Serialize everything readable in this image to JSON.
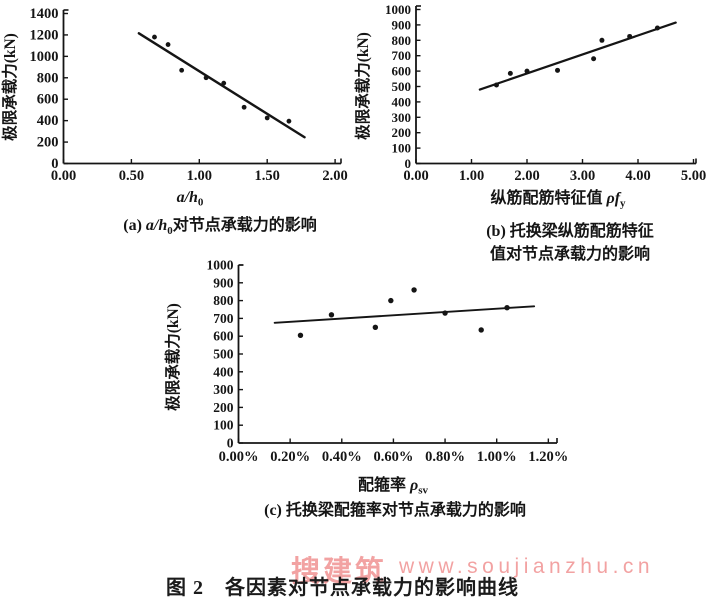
{
  "figure": {
    "title": "图 2　各因素对节点承载力的影响曲线"
  },
  "watermark": {
    "brand": "搜建筑",
    "url": "www.soujianzhu.cn",
    "color": "#f08c8c"
  },
  "ink_color": "#151515",
  "chart_data": [
    {
      "id": "a",
      "type": "scatter",
      "title": "(a) a/h0 对节点承载力的影响",
      "ylabel": "极限承载力(kN)",
      "xlabel_parts": [
        {
          "t": "a/h",
          "style": "italic"
        },
        {
          "t": "0",
          "style": "sub"
        }
      ],
      "caption_lines": [
        [
          {
            "t": "(a) "
          },
          {
            "t": "a/h",
            "style": "italic"
          },
          {
            "t": "0",
            "style": "sub"
          },
          {
            "t": "对节点承载力的影响"
          }
        ]
      ],
      "xlim": [
        0,
        2.0
      ],
      "ylim": [
        0,
        1400
      ],
      "xticks": [
        "0.00",
        "0.50",
        "1.00",
        "1.50",
        "2.00"
      ],
      "yticks": [
        "0",
        "200",
        "400",
        "600",
        "800",
        "1000",
        "1200",
        "1400"
      ],
      "grid": false,
      "legend": false,
      "points": [
        [
          0.67,
          1180
        ],
        [
          0.77,
          1110
        ],
        [
          0.87,
          870
        ],
        [
          1.05,
          800
        ],
        [
          1.18,
          750
        ],
        [
          1.33,
          525
        ],
        [
          1.5,
          425
        ],
        [
          1.66,
          395
        ]
      ],
      "trendline": {
        "x1": 0.555,
        "y1": 1215,
        "x2": 1.775,
        "y2": 245
      }
    },
    {
      "id": "b",
      "type": "scatter",
      "title": "(b) 托换梁纵筋配筋特征值对节点承载力的影响",
      "ylabel": "极限承载力(kN)",
      "xlabel_parts": [
        {
          "t": "纵筋配筋特征值 "
        },
        {
          "t": "ρf",
          "style": "italic"
        },
        {
          "t": "y",
          "style": "sub"
        }
      ],
      "caption_lines": [
        [
          {
            "t": "(b) 托换梁纵筋配筋特征"
          }
        ],
        [
          {
            "t": "值对节点承载力的影响"
          }
        ]
      ],
      "xlim": [
        0,
        5.0
      ],
      "ylim": [
        0,
        1000
      ],
      "xticks": [
        "0.00",
        "1.00",
        "2.00",
        "3.00",
        "4.00",
        "5.00"
      ],
      "yticks": [
        "0",
        "100",
        "200",
        "300",
        "400",
        "500",
        "600",
        "700",
        "800",
        "900",
        "1000"
      ],
      "grid": false,
      "legend": false,
      "points": [
        [
          1.45,
          510
        ],
        [
          1.7,
          585
        ],
        [
          2.0,
          600
        ],
        [
          2.55,
          605
        ],
        [
          3.2,
          680
        ],
        [
          3.35,
          800
        ],
        [
          3.85,
          825
        ],
        [
          4.35,
          880
        ]
      ],
      "trendline": {
        "x1": 1.15,
        "y1": 480,
        "x2": 4.68,
        "y2": 915
      }
    },
    {
      "id": "c",
      "type": "scatter",
      "title": "(c) 托换梁配箍率对节点承载力的影响",
      "ylabel": "极限承载力(kN)",
      "xlabel_parts": [
        {
          "t": "配箍率 "
        },
        {
          "t": "ρ",
          "style": "italic"
        },
        {
          "t": "sv",
          "style": "sub"
        }
      ],
      "caption_lines": [
        [
          {
            "t": "(c) 托换梁配箍率对节点承载力的影响"
          }
        ]
      ],
      "xlim": [
        0,
        1.2
      ],
      "ylim": [
        0,
        1000
      ],
      "xticks": [
        "0.00%",
        "0.20%",
        "0.40%",
        "0.60%",
        "0.80%",
        "1.00%",
        "1.20%"
      ],
      "yticks": [
        "0",
        "100",
        "200",
        "300",
        "400",
        "500",
        "600",
        "700",
        "800",
        "900",
        "1000"
      ],
      "grid": false,
      "legend": false,
      "points": [
        [
          0.24,
          605
        ],
        [
          0.36,
          720
        ],
        [
          0.53,
          650
        ],
        [
          0.59,
          800
        ],
        [
          0.68,
          860
        ],
        [
          0.8,
          730
        ],
        [
          0.94,
          635
        ],
        [
          1.04,
          760
        ]
      ],
      "trendline": {
        "x1": 0.14,
        "y1": 675,
        "x2": 1.145,
        "y2": 768
      }
    }
  ]
}
